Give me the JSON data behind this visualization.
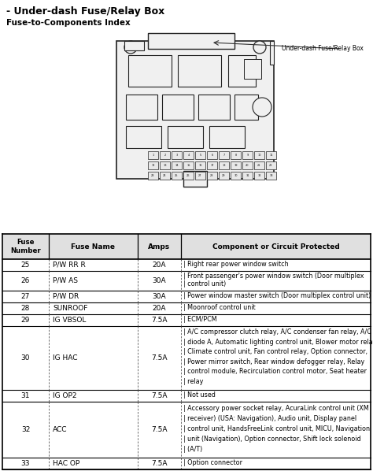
{
  "title": "- Under-dash Fuse/Relay Box",
  "subtitle": "Fuse-to-Components Index",
  "diagram_label": "Under-dash Fuse/Relay Box",
  "bg_color": "#ffffff",
  "table_header": [
    "Fuse\nNumber",
    "Fuse Name",
    "Amps",
    "Component or Circuit Protected"
  ],
  "rows": [
    [
      "25",
      "P/W RR R",
      "20A",
      "Right rear power window switch"
    ],
    [
      "26",
      "P/W AS",
      "30A",
      "Front passenger's power window switch (Door multiplex\ncontrol unit)"
    ],
    [
      "27",
      "P/W DR",
      "30A",
      "Power window master switch (Door multiplex control unit)"
    ],
    [
      "28",
      "SUNROOF",
      "20A",
      "Moonroof control unit"
    ],
    [
      "29",
      "IG VBSOL",
      "7.5A",
      "ECM/PCM"
    ],
    [
      "30",
      "IG HAC",
      "7.5A",
      "A/C compressor clutch relay, A/C condenser fan relay, A/C\ndiode A, Automatic lighting control unit, Blower motor relay,\nClimate control unit, Fan control relay, Option connector,\nPower mirror switch, Rear window defogger relay, Relay\ncontrol module, Recirculation control motor, Seat heater\nrelay"
    ],
    [
      "31",
      "IG OP2",
      "7.5A",
      "Not used"
    ],
    [
      "32",
      "ACC",
      "7.5A",
      "Accessory power socket relay, AcuraLink control unit (XM\nreceiver) (USA: Navigation), Audio unit, Display panel\ncontrol unit, HandsFreeLink control unit, MICU, Navigation\nunit (Navigation), Option connector, Shift lock solenoid\n(A/T)"
    ],
    [
      "33",
      "HAC OP",
      "7.5A",
      "Option connector"
    ]
  ],
  "row_heights_rel": [
    1,
    1.7,
    1,
    1,
    1,
    5.5,
    1,
    4.8,
    1
  ],
  "text_color": "#000000",
  "header_color": "#000000"
}
